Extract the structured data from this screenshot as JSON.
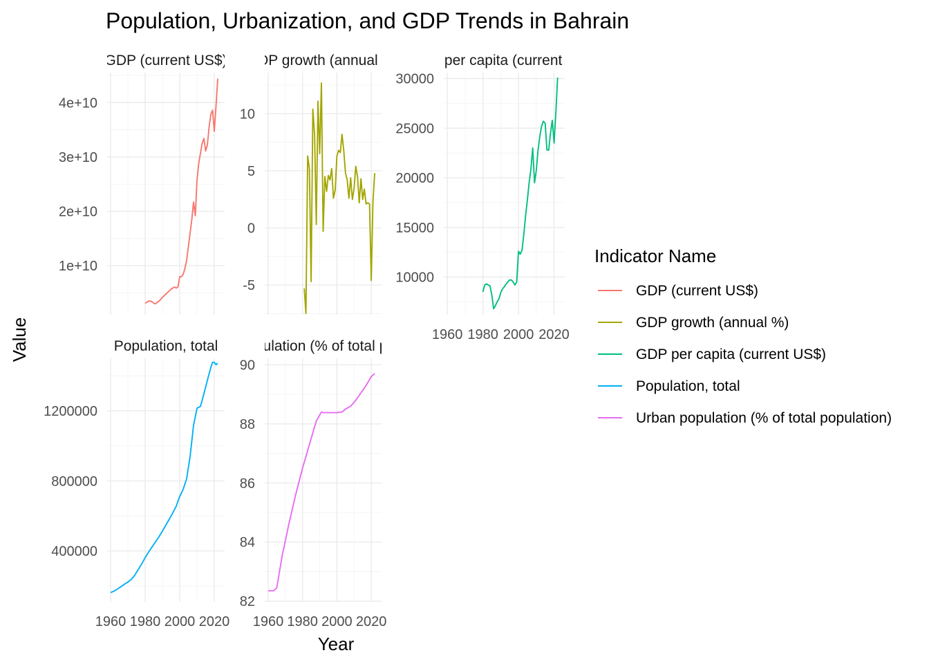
{
  "chart_data": {
    "type": "line",
    "title": "Population, Urbanization, and GDP Trends in Bahrain",
    "xlabel": "Year",
    "ylabel": "Value",
    "legend": {
      "title": "Indicator Name",
      "placement": "right",
      "entries": [
        {
          "name": "GDP (current US$)",
          "color": "#F8766D"
        },
        {
          "name": "GDP growth (annual %)",
          "color": "#A3A500"
        },
        {
          "name": "GDP per capita (current US$)",
          "color": "#00BF7D"
        },
        {
          "name": "Population, total",
          "color": "#00B0F6"
        },
        {
          "name": "Urban population (% of total population)",
          "color": "#E76BF3"
        }
      ]
    },
    "grid": true,
    "panels": [
      {
        "strip": "GDP (current US$)",
        "color": "#F8766D",
        "xlim": [
          1958,
          2026
        ],
        "ylim": [
          1000000000,
          45500000000
        ],
        "x_ticks": [
          1960,
          1980,
          2000,
          2020
        ],
        "x_tick_labels": [],
        "y_ticks": [
          10000000000,
          20000000000,
          30000000000,
          40000000000
        ],
        "y_tick_labels": [
          "1e+10",
          "2e+10",
          "3e+10",
          "4e+10"
        ],
        "x": [
          1980,
          1981,
          1982,
          1983,
          1984,
          1985,
          1986,
          1987,
          1988,
          1989,
          1990,
          1991,
          1992,
          1993,
          1994,
          1995,
          1996,
          1997,
          1998,
          1999,
          2000,
          2001,
          2002,
          2003,
          2004,
          2005,
          2006,
          2007,
          2008,
          2009,
          2010,
          2011,
          2012,
          2013,
          2014,
          2015,
          2016,
          2017,
          2018,
          2019,
          2020,
          2021,
          2022
        ],
        "y": [
          3100000000,
          3300000000,
          3500000000,
          3500000000,
          3400000000,
          3100000000,
          3000000000,
          3300000000,
          3500000000,
          3800000000,
          4200000000,
          4500000000,
          4800000000,
          5100000000,
          5400000000,
          5700000000,
          5900000000,
          6100000000,
          5900000000,
          6100000000,
          8000000000,
          8000000000,
          8400000000,
          9500000000,
          11000000000,
          13500000000,
          16000000000,
          18500000000,
          21700000000,
          19200000000,
          25700000000,
          28800000000,
          30700000000,
          32500000000,
          33400000000,
          31100000000,
          32200000000,
          35500000000,
          37800000000,
          38600000000,
          34700000000,
          39300000000,
          44400000000
        ]
      },
      {
        "strip": "GDP growth (annual %)",
        "color": "#A3A500",
        "xlim": [
          1958,
          2026
        ],
        "ylim": [
          -7.6,
          13.6
        ],
        "x_ticks": [
          1960,
          1980,
          2000,
          2020
        ],
        "x_tick_labels": [],
        "y_ticks": [
          -5,
          0,
          5,
          10
        ],
        "y_tick_labels": [
          "-5",
          "0",
          "5",
          "10"
        ],
        "x": [
          1981,
          1982,
          1983,
          1984,
          1985,
          1986,
          1987,
          1988,
          1989,
          1990,
          1991,
          1992,
          1993,
          1994,
          1995,
          1996,
          1997,
          1998,
          1999,
          2000,
          2001,
          2002,
          2003,
          2004,
          2005,
          2006,
          2007,
          2008,
          2009,
          2010,
          2011,
          2012,
          2013,
          2014,
          2015,
          2016,
          2017,
          2018,
          2019,
          2020,
          2021,
          2022
        ],
        "y": [
          -5.3,
          -7.5,
          6.3,
          5.2,
          -4.7,
          10.4,
          8.2,
          0.3,
          11.1,
          6.5,
          12.7,
          -0.3,
          4.5,
          3.2,
          4.6,
          4.2,
          5.2,
          2.6,
          3.3,
          6.3,
          6.8,
          6.6,
          8.2,
          6.8,
          4.8,
          4.2,
          2.6,
          4.4,
          2.5,
          3.4,
          5.4,
          4.5,
          2.2,
          4.3,
          2.5,
          3.4,
          2.1,
          2.2,
          2.1,
          -4.6,
          2.4,
          4.8
        ]
      },
      {
        "strip": "GDP per capita (current US$)",
        "color": "#00BF7D",
        "xlim": [
          1958,
          2026
        ],
        "ylim": [
          6200,
          30600
        ],
        "x_ticks": [
          1960,
          1980,
          2000,
          2020
        ],
        "x_tick_labels": [
          "1960",
          "1980",
          "2000",
          "2020"
        ],
        "y_ticks": [
          10000,
          15000,
          20000,
          25000,
          30000
        ],
        "y_tick_labels": [
          "10000",
          "15000",
          "20000",
          "25000",
          "30000"
        ],
        "x": [
          1980,
          1981,
          1982,
          1983,
          1984,
          1985,
          1986,
          1987,
          1988,
          1989,
          1990,
          1991,
          1992,
          1993,
          1994,
          1995,
          1996,
          1997,
          1998,
          1999,
          2000,
          2001,
          2002,
          2003,
          2004,
          2005,
          2006,
          2007,
          2008,
          2009,
          2010,
          2011,
          2012,
          2013,
          2014,
          2015,
          2016,
          2017,
          2018,
          2019,
          2020,
          2021,
          2022
        ],
        "y": [
          8500,
          9200,
          9300,
          9200,
          9100,
          8200,
          6800,
          7100,
          7500,
          7800,
          8400,
          8800,
          9000,
          9300,
          9500,
          9700,
          9700,
          9500,
          9200,
          9500,
          12600,
          12300,
          12700,
          14300,
          16200,
          17800,
          19500,
          20900,
          23000,
          19500,
          20700,
          22800,
          24200,
          25200,
          25700,
          25500,
          22800,
          22800,
          24500,
          25800,
          23500,
          26500,
          30100
        ]
      },
      {
        "strip": "Population, total",
        "color": "#00B0F6",
        "xlim": [
          1958,
          2026
        ],
        "ylim": [
          110000,
          1500000
        ],
        "x_ticks": [
          1960,
          1980,
          2000,
          2020
        ],
        "x_tick_labels": [
          "1960",
          "1980",
          "2000",
          "2020"
        ],
        "y_ticks": [
          400000,
          800000,
          1200000
        ],
        "y_tick_labels": [
          "400000",
          "800000",
          "1200000"
        ],
        "x": [
          1960,
          1962,
          1964,
          1966,
          1968,
          1970,
          1972,
          1974,
          1976,
          1978,
          1980,
          1982,
          1984,
          1986,
          1988,
          1990,
          1992,
          1994,
          1996,
          1998,
          2000,
          2002,
          2004,
          2006,
          2008,
          2010,
          2012,
          2014,
          2016,
          2018,
          2019,
          2020,
          2021,
          2022
        ],
        "y": [
          162000,
          171000,
          183000,
          196000,
          210000,
          222000,
          238000,
          262000,
          294000,
          326000,
          362000,
          394000,
          423000,
          452000,
          481000,
          513000,
          548000,
          582000,
          618000,
          656000,
          711000,
          752000,
          812000,
          939000,
          1117000,
          1215000,
          1225000,
          1297000,
          1374000,
          1447000,
          1477000,
          1477000,
          1463000,
          1472000
        ]
      },
      {
        "strip": "Urban population (% of total population)",
        "color": "#E76BF3",
        "xlim": [
          1958,
          2026
        ],
        "ylim": [
          81.98,
          90.22
        ],
        "x_ticks": [
          1960,
          1980,
          2000,
          2020
        ],
        "x_tick_labels": [
          "1960",
          "1980",
          "2000",
          "2020"
        ],
        "y_ticks": [
          82,
          84,
          86,
          88,
          90
        ],
        "y_tick_labels": [
          "82",
          "84",
          "86",
          "88",
          "90"
        ],
        "x": [
          1960,
          1963,
          1965,
          1968,
          1972,
          1976,
          1980,
          1984,
          1988,
          1991,
          1992,
          1995,
          2000,
          2003,
          2005,
          2008,
          2011,
          2014,
          2017,
          2020,
          2022
        ],
        "y": [
          82.35,
          82.35,
          82.45,
          83.5,
          84.6,
          85.6,
          86.5,
          87.3,
          88.1,
          88.4,
          88.38,
          88.38,
          88.38,
          88.4,
          88.5,
          88.6,
          88.8,
          89.05,
          89.3,
          89.6,
          89.7
        ]
      }
    ]
  }
}
